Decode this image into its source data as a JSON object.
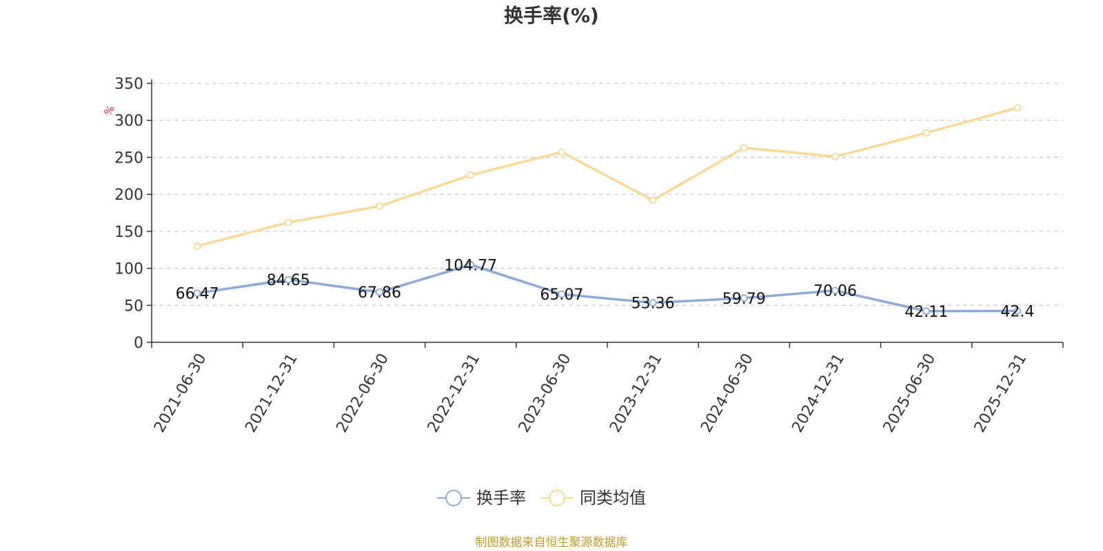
{
  "chart_data": {
    "type": "line",
    "title": "换手率(%)",
    "ylabel": "%",
    "categories": [
      "2021-06-30",
      "2021-12-31",
      "2022-06-30",
      "2022-12-31",
      "2023-06-30",
      "2023-12-31",
      "2024-06-30",
      "2024-12-31",
      "2025-06-30",
      "2025-12-31"
    ],
    "series": [
      {
        "name": "换手率",
        "values": [
          66.47,
          84.65,
          67.86,
          104.77,
          65.07,
          53.36,
          59.79,
          70.06,
          42.11,
          42.4
        ],
        "labels": [
          "66.47",
          "84.65",
          "67.86",
          "104.77",
          "65.07",
          "53.36",
          "59.79",
          "70.06",
          "42.11",
          "42.4"
        ],
        "color": "#8eaad8",
        "show_labels": true
      },
      {
        "name": "同类均值",
        "values": [
          130,
          162,
          184,
          226,
          257,
          192,
          263,
          251,
          283,
          317
        ],
        "color": "#fbd993",
        "show_labels": false
      }
    ],
    "ylim": [
      0,
      350
    ],
    "yticks": [
      "0",
      "50",
      "100",
      "150",
      "200",
      "250",
      "300",
      "350"
    ],
    "grid": true,
    "grid_style": "dashed",
    "legend_position": "bottom-center",
    "unit_color": "#e0262b"
  },
  "source_text": "制图数据来自恒生聚源数据库",
  "source_color": "#c69a2b"
}
